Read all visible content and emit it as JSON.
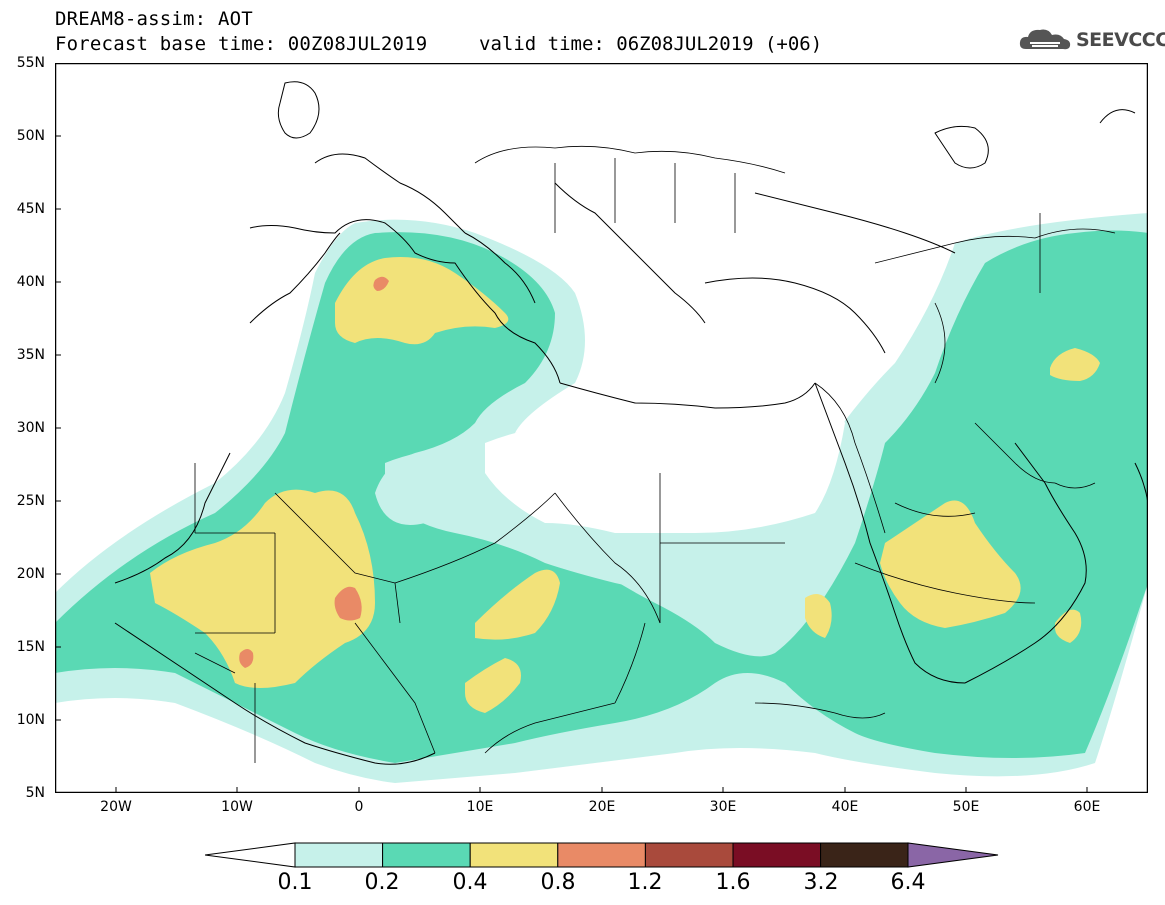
{
  "header": {
    "title_line1": "DREAM8-assim: AOT",
    "title_line2": "Forecast base time: 00Z08JUL2019",
    "valid_time": "valid time: 06Z08JUL2019 (+06)"
  },
  "logo": {
    "text": "SEEVCCC",
    "icon": "cloud-logo-icon"
  },
  "map": {
    "variable": "AOT",
    "lat_labels": [
      "55N",
      "50N",
      "45N",
      "40N",
      "35N",
      "30N",
      "25N",
      "20N",
      "15N",
      "10N",
      "5N"
    ],
    "lon_labels": [
      "20W",
      "10W",
      "0",
      "10E",
      "20E",
      "30E",
      "40E",
      "50E",
      "60E"
    ],
    "lat_range": [
      5,
      55
    ],
    "lon_range": [
      -25,
      65
    ]
  },
  "colorbar": {
    "labels": [
      "0.1",
      "0.2",
      "0.4",
      "0.8",
      "1.2",
      "1.6",
      "3.2",
      "6.4"
    ],
    "colors": [
      "#c6f1ea",
      "#5ad9b4",
      "#f2e27a",
      "#e98a66",
      "#a94a3c",
      "#7a0d24",
      "#3a2418",
      "#8a66a6"
    ]
  }
}
